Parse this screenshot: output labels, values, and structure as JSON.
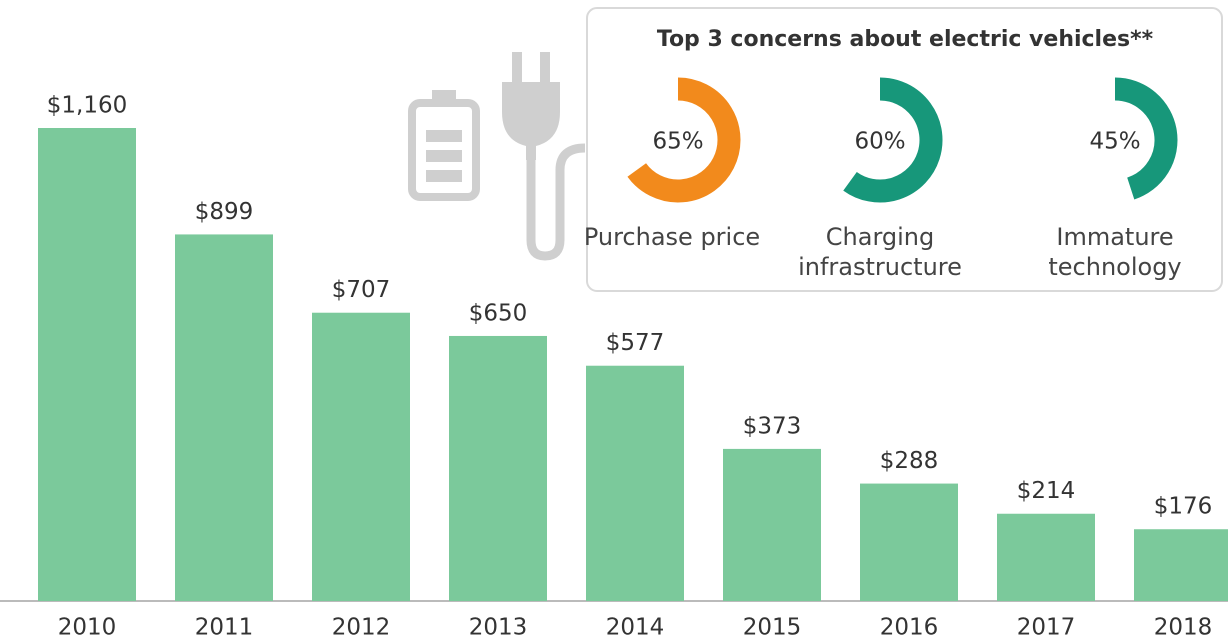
{
  "chart_data": [
    {
      "type": "bar",
      "categories": [
        "2010",
        "2011",
        "2012",
        "2013",
        "2014",
        "2015",
        "2016",
        "2017",
        "2018"
      ],
      "values": [
        1160,
        899,
        707,
        650,
        577,
        373,
        288,
        214,
        176
      ],
      "value_labels": [
        "$1,160",
        "$899",
        "$707",
        "$650",
        "$577",
        "$373",
        "$288",
        "$214",
        "$176"
      ],
      "color": "#7bc99b"
    },
    {
      "type": "donut",
      "title": "Top 3 concerns about electric vehicles**",
      "categories": [
        "Purchase price",
        "Charging infrastructure",
        "Immature technology"
      ],
      "values": [
        65,
        60,
        45
      ],
      "value_labels": [
        "65%",
        "60%",
        "45%"
      ],
      "colors": [
        "#f28a1c",
        "#17977a",
        "#17977a"
      ]
    }
  ]
}
